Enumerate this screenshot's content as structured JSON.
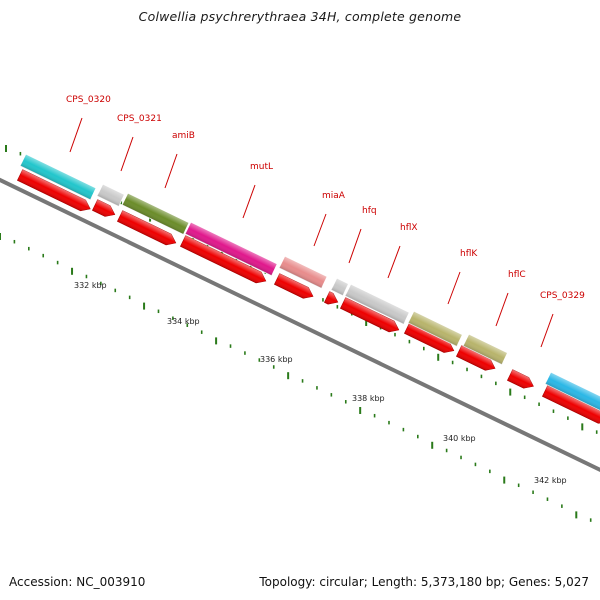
{
  "title": "Colwellia psychrerythraea 34H, complete genome",
  "footer": {
    "accession": "Accession: NC_003910",
    "topology": "Topology: circular; Length: 5,373,180 bp; Genes: 5,027"
  },
  "colors": {
    "label_text": "#cc0000",
    "tick_major": "#2a7a1a",
    "tick_minor": "#2a7a1a",
    "cds_track": "#ee0000",
    "backbone": "#777777"
  },
  "ruler": {
    "labels": [
      "332 kbp",
      "334 kbp",
      "336 kbp",
      "338 kbp",
      "340 kbp",
      "342 kbp"
    ]
  },
  "genes": [
    {
      "name": "CPS_0320",
      "color": "#22c6cc",
      "labeled": true
    },
    {
      "name": "CPS_0321",
      "color": "#c9c9c9",
      "labeled": true
    },
    {
      "name": "amiB",
      "color": "#6b8c2a",
      "labeled": true
    },
    {
      "name": "mutL",
      "color": "#e0188c",
      "labeled": true
    },
    {
      "name": "miaA",
      "color": "#e88c8c",
      "labeled": true
    },
    {
      "name": "hfq",
      "color": "#c9c9c9",
      "labeled": true
    },
    {
      "name": "hflX",
      "color": "#c9c9c9",
      "labeled": true
    },
    {
      "name": "hflK",
      "color": "#b8b46c",
      "labeled": true
    },
    {
      "name": "hflC",
      "color": "#b8b46c",
      "labeled": true
    },
    {
      "name": "CPS_0329",
      "color": "#2bb7e6",
      "labeled": true
    }
  ]
}
